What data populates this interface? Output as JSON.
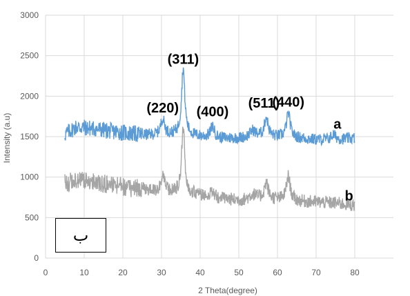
{
  "chart_data": {
    "type": "line",
    "xlabel": "2 Theta(degree)",
    "ylabel": "Intensity (a.u)",
    "xlim": [
      0,
      90
    ],
    "ylim": [
      0,
      3000
    ],
    "xticks": [
      0,
      10,
      20,
      30,
      40,
      50,
      60,
      70,
      80
    ],
    "yticks": [
      0,
      500,
      1000,
      1500,
      2000,
      2500,
      3000
    ],
    "grid": true,
    "series": [
      {
        "name": "a",
        "color": "#5b9bd5",
        "baseline": [
          [
            5,
            1530
          ],
          [
            8,
            1620
          ],
          [
            12,
            1600
          ],
          [
            18,
            1560
          ],
          [
            25,
            1520
          ],
          [
            30,
            1520
          ],
          [
            35,
            1530
          ],
          [
            40,
            1500
          ],
          [
            45,
            1480
          ],
          [
            50,
            1480
          ],
          [
            55,
            1500
          ],
          [
            60,
            1490
          ],
          [
            65,
            1480
          ],
          [
            70,
            1460
          ],
          [
            75,
            1460
          ],
          [
            80,
            1480
          ]
        ],
        "noise": 80,
        "peaks": [
          [
            30.3,
            200,
            0.6
          ],
          [
            35.6,
            820,
            0.5
          ],
          [
            43.2,
            140,
            0.6
          ],
          [
            53.6,
            80,
            0.8
          ],
          [
            57.1,
            240,
            0.6
          ],
          [
            62.8,
            300,
            0.6
          ],
          [
            74.5,
            60,
            0.8
          ]
        ]
      },
      {
        "name": "b",
        "color": "#a5a5a5",
        "baseline": [
          [
            5,
            930
          ],
          [
            10,
            960
          ],
          [
            15,
            920
          ],
          [
            20,
            880
          ],
          [
            25,
            850
          ],
          [
            30,
            820
          ],
          [
            35,
            800
          ],
          [
            40,
            780
          ],
          [
            45,
            740
          ],
          [
            50,
            710
          ],
          [
            55,
            730
          ],
          [
            60,
            720
          ],
          [
            65,
            700
          ],
          [
            70,
            690
          ],
          [
            75,
            680
          ],
          [
            80,
            650
          ]
        ],
        "noise": 90,
        "peaks": [
          [
            30.3,
            180,
            0.6
          ],
          [
            35.6,
            800,
            0.5
          ],
          [
            43.2,
            60,
            0.6
          ],
          [
            53.6,
            60,
            1.0
          ],
          [
            57.1,
            200,
            0.6
          ],
          [
            62.8,
            300,
            0.6
          ]
        ]
      }
    ],
    "annotations": [
      {
        "text": "(220)",
        "x": 30.3,
        "y": 1800
      },
      {
        "text": "(311)",
        "x": 35.6,
        "y": 2400
      },
      {
        "text": "(400)",
        "x": 43.2,
        "y": 1750
      },
      {
        "text": "(511)",
        "x": 56.5,
        "y": 1860
      },
      {
        "text": "(440)",
        "x": 62.8,
        "y": 1870
      },
      {
        "text": "a",
        "x": 75.5,
        "y": 1600
      },
      {
        "text": "b",
        "x": 78.5,
        "y": 710
      }
    ],
    "inset_label": "ب"
  }
}
